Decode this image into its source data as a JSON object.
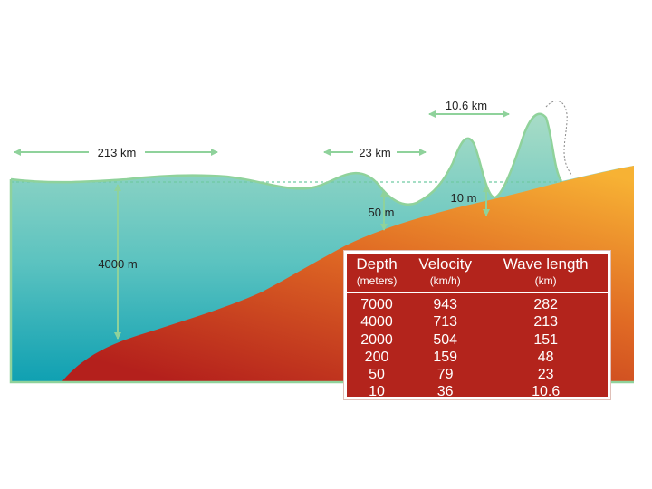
{
  "labels": {
    "open_ocean_wavelength": "213 km",
    "shelf_wavelength": "23 km",
    "shore_wavelength": "10.6 km",
    "ocean_depth": "4000 m",
    "shelf_depth": "50 m",
    "shore_depth": "10 m"
  },
  "table": {
    "headers": [
      "Depth",
      "Velocity",
      "Wave length"
    ],
    "units": [
      "(meters)",
      "(km/h)",
      "(km)"
    ],
    "rows": [
      [
        "7000",
        "943",
        "282"
      ],
      [
        "4000",
        "713",
        "213"
      ],
      [
        "2000",
        "504",
        "151"
      ],
      [
        "200",
        "159",
        "48"
      ],
      [
        "50",
        "79",
        "23"
      ],
      [
        "10",
        "36",
        "10.6"
      ]
    ]
  },
  "colors": {
    "water_top": "#a8dcc6",
    "water_bottom": "#0fa0b2",
    "seafloor_top": "#f7b234",
    "seafloor_bottom": "#b4201c",
    "arrow": "#8fd29b",
    "table_bg": "#b3241c"
  }
}
